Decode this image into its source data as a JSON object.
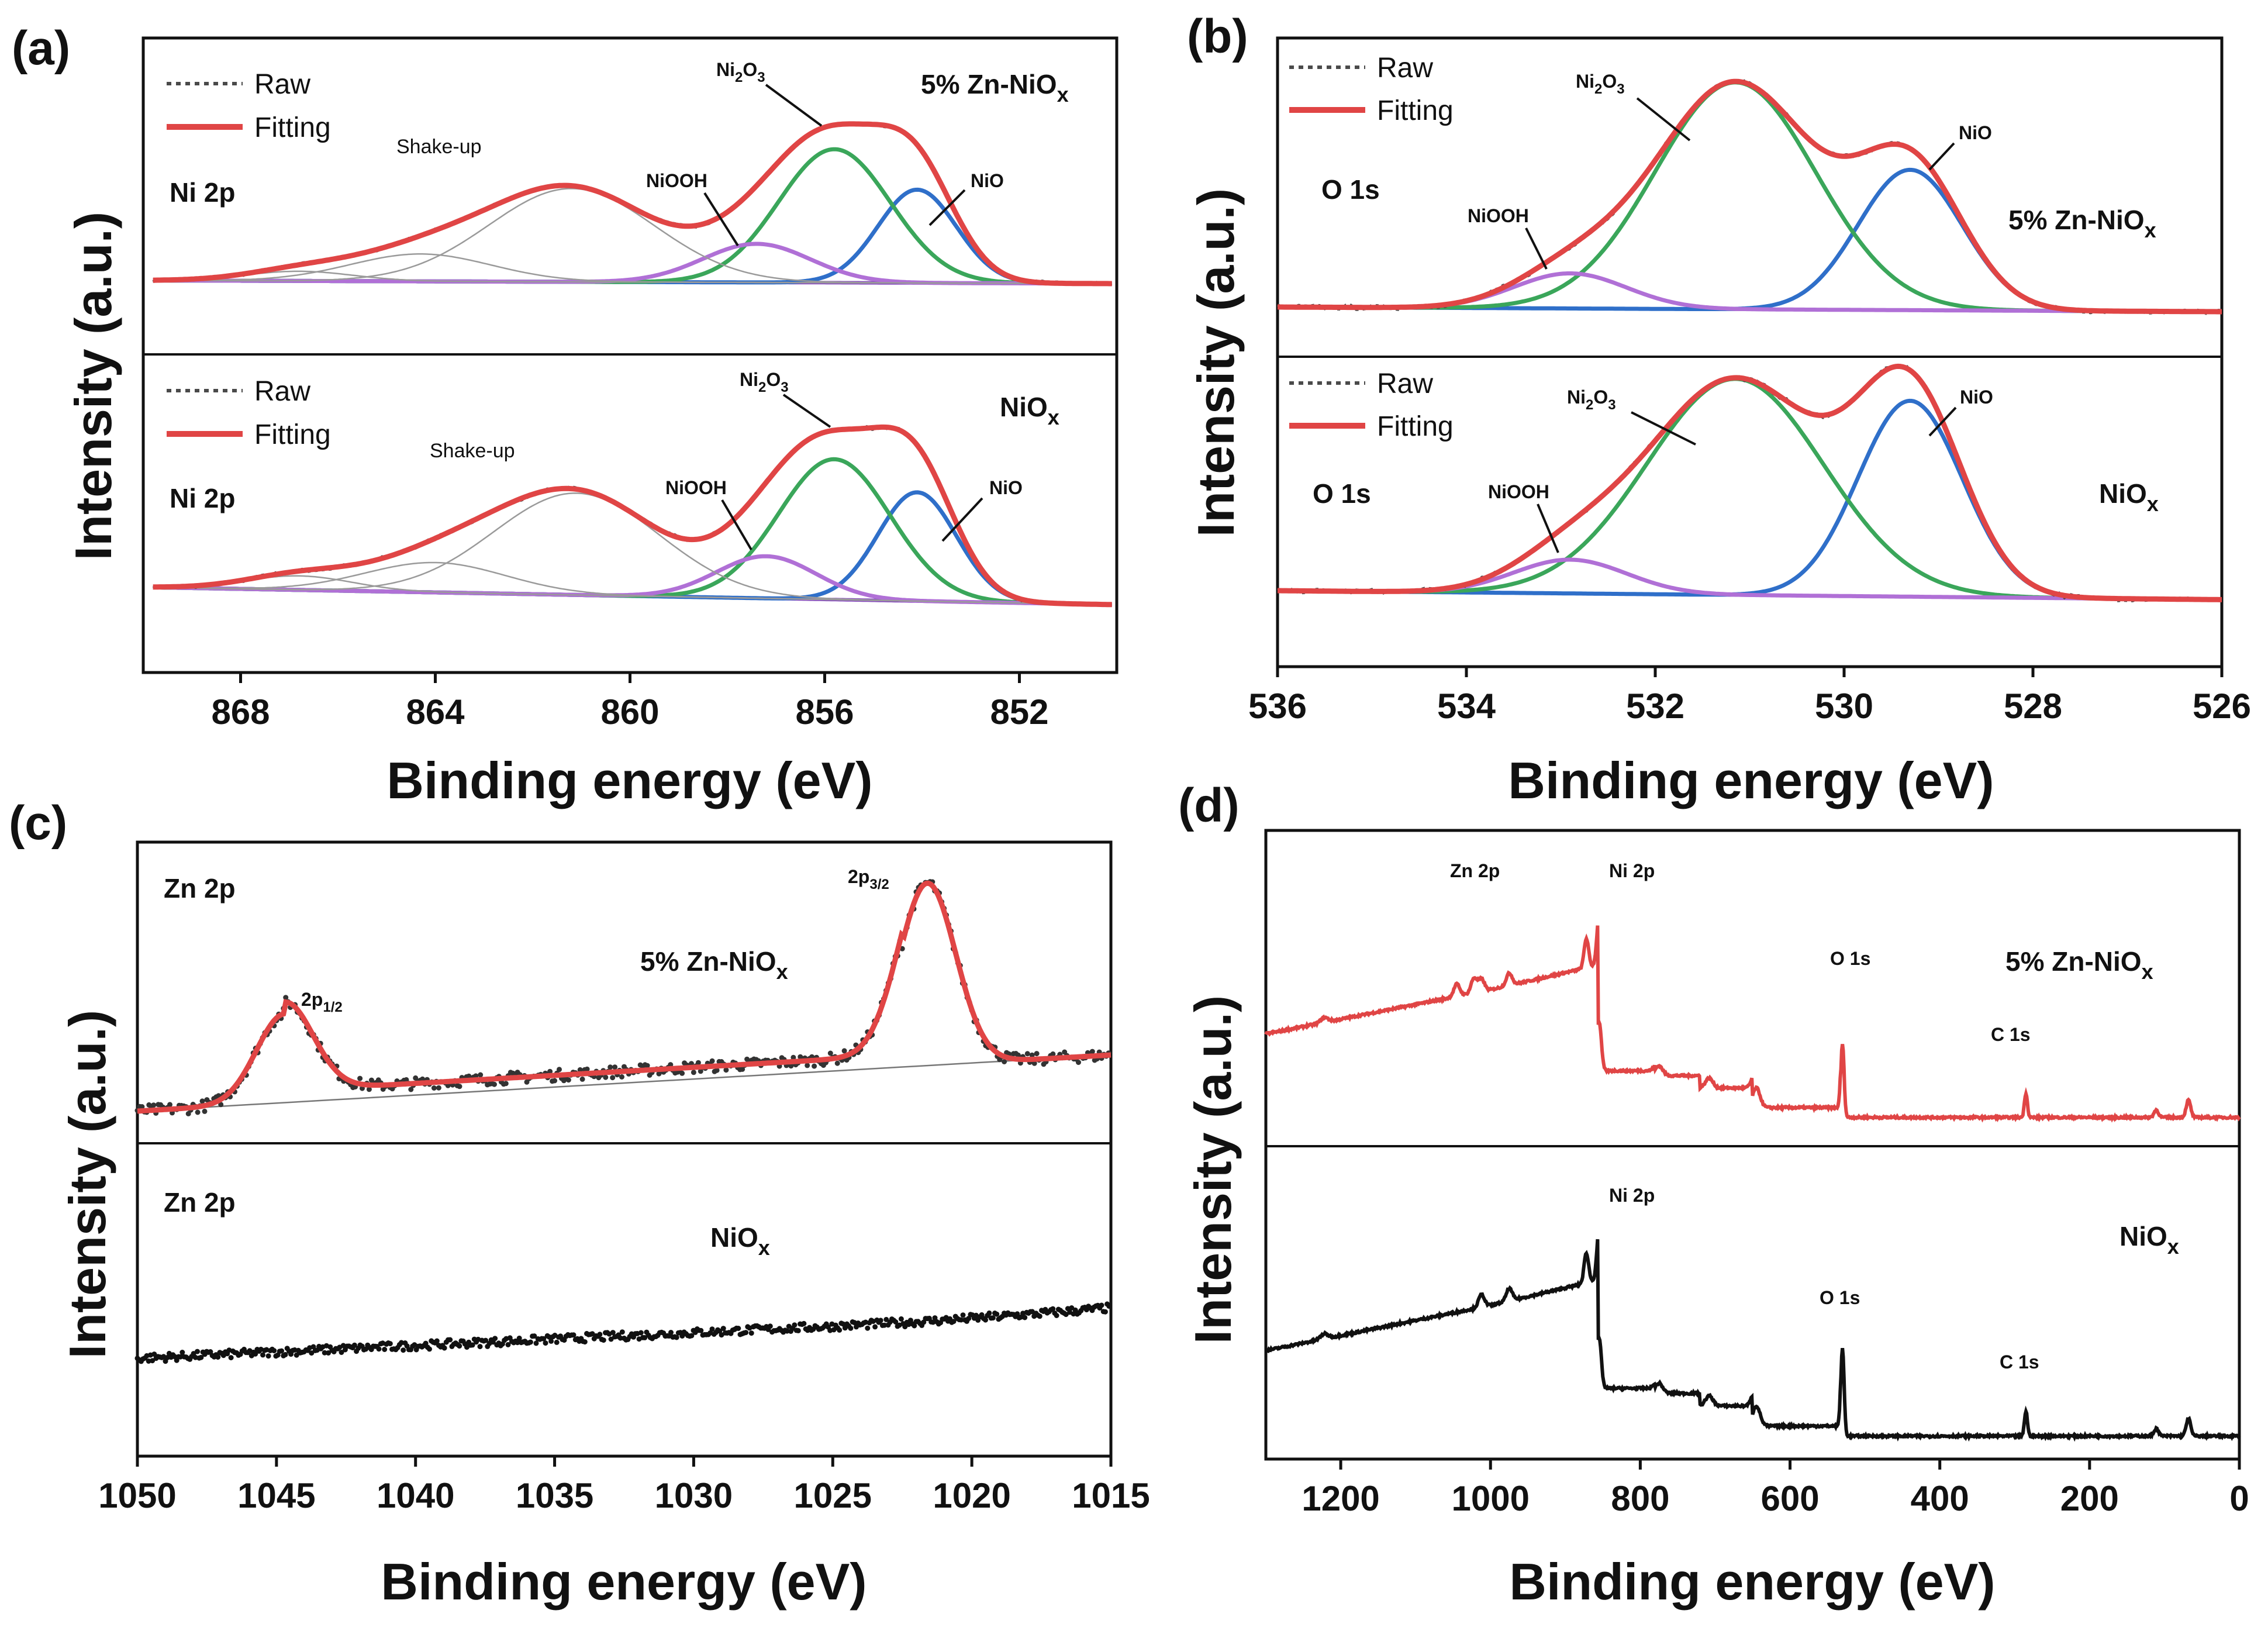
{
  "figure": {
    "panels": [
      {
        "id": "a",
        "label": "(a)"
      },
      {
        "id": "b",
        "label": "(b)"
      },
      {
        "id": "c",
        "label": "(c)"
      },
      {
        "id": "d",
        "label": "(d)"
      }
    ],
    "ylabel": "Intensity (a.u.)",
    "xlabel": "Binding energy (eV)"
  },
  "colors": {
    "raw": "#4a4a4a",
    "fitting": "#e04545",
    "nio": "#2f6fc9",
    "ni2o3": "#3aa65a",
    "niooh": "#b070d6",
    "background": "#8a4fc0",
    "shakeup": "#9a9a9a",
    "survey_zn": "#e04545",
    "survey_nio": "#111111"
  },
  "chart_data": [
    {
      "panel": "(a)",
      "type": "line",
      "xlabel": "Binding energy (eV)",
      "ylabel": "Intensity (a.u.)",
      "xlim": [
        870,
        850
      ],
      "xticks": [
        868,
        864,
        860,
        856,
        852
      ],
      "subplots": [
        {
          "region": "Ni 2p",
          "sample": "5% Zn-NiO",
          "sample_sub": "x",
          "legend": [
            "Raw",
            "Fitting"
          ],
          "peaks": [
            {
              "name": "NiO",
              "center": 854.1,
              "fwhm": 1.9,
              "amp": 0.58
            },
            {
              "name": "Ni2O3",
              "center": 855.8,
              "fwhm": 2.7,
              "amp": 0.83
            },
            {
              "name": "NiOOH",
              "center": 857.4,
              "fwhm": 2.6,
              "amp": 0.24
            },
            {
              "name": "Shake-up",
              "center": 861.2,
              "fwhm": 4.0,
              "amp": 0.58
            },
            {
              "name": "Shake-up",
              "center": 864.3,
              "fwhm": 3.4,
              "amp": 0.17
            },
            {
              "name": "Shake-up",
              "center": 866.8,
              "fwhm": 2.6,
              "amp": 0.06
            }
          ],
          "background": [
            0.02,
            0.0
          ],
          "annotations": [
            "Shake-up",
            "NiOOH",
            "Ni2O3",
            "NiO"
          ]
        },
        {
          "region": "Ni 2p",
          "sample": "NiO",
          "sample_sub": "x",
          "legend": [
            "Raw",
            "Fitting"
          ],
          "peaks": [
            {
              "name": "NiO",
              "center": 854.1,
              "fwhm": 1.9,
              "amp": 0.62
            },
            {
              "name": "Ni2O3",
              "center": 855.8,
              "fwhm": 2.7,
              "amp": 0.8
            },
            {
              "name": "NiOOH",
              "center": 857.2,
              "fwhm": 2.4,
              "amp": 0.24
            },
            {
              "name": "Shake-up",
              "center": 861.1,
              "fwhm": 4.0,
              "amp": 0.58
            },
            {
              "name": "Shake-up",
              "center": 864.0,
              "fwhm": 3.4,
              "amp": 0.17
            },
            {
              "name": "Shake-up",
              "center": 866.8,
              "fwhm": 2.6,
              "amp": 0.08
            }
          ],
          "background": [
            0.02,
            -0.08
          ],
          "annotations": [
            "Shake-up",
            "NiOOH",
            "Ni2O3",
            "NiO"
          ]
        }
      ]
    },
    {
      "panel": "(b)",
      "type": "line",
      "xlabel": "Binding energy (eV)",
      "ylabel": "Intensity (a.u.)",
      "xlim": [
        536,
        526
      ],
      "xticks": [
        536,
        534,
        532,
        530,
        528,
        526
      ],
      "subplots": [
        {
          "region": "O 1s",
          "sample": "5% Zn-NiO",
          "sample_sub": "x",
          "legend": [
            "Raw",
            "Fitting"
          ],
          "peaks": [
            {
              "name": "NiO",
              "center": 529.3,
              "fwhm": 1.3,
              "amp": 0.6
            },
            {
              "name": "Ni2O3",
              "center": 531.15,
              "fwhm": 2.0,
              "amp": 0.97
            },
            {
              "name": "NiOOH",
              "center": 532.9,
              "fwhm": 1.4,
              "amp": 0.15
            }
          ],
          "background": [
            0.0,
            -0.02
          ],
          "annotations": [
            "Ni2O3",
            "NiO",
            "NiOOH"
          ]
        },
        {
          "region": "O 1s",
          "sample": "NiO",
          "sample_sub": "x",
          "legend": [
            "Raw",
            "Fitting"
          ],
          "peaks": [
            {
              "name": "NiO",
              "center": 529.3,
              "fwhm": 1.3,
              "amp": 0.87
            },
            {
              "name": "Ni2O3",
              "center": 531.15,
              "fwhm": 2.2,
              "amp": 0.96
            },
            {
              "name": "NiOOH",
              "center": 532.9,
              "fwhm": 1.4,
              "amp": 0.15
            }
          ],
          "background": [
            0.0,
            -0.04
          ],
          "annotations": [
            "Ni2O3",
            "NiO",
            "NiOOH"
          ]
        }
      ]
    },
    {
      "panel": "(c)",
      "type": "scatter",
      "xlabel": "Binding energy (eV)",
      "ylabel": "Intensity (a.u.)",
      "xlim": [
        1050,
        1015
      ],
      "xticks": [
        1050,
        1045,
        1040,
        1035,
        1030,
        1025,
        1020,
        1015
      ],
      "subplots": [
        {
          "region": "Zn 2p",
          "sample": "5% Zn-NiO",
          "sample_sub": "x",
          "peaks": [
            {
              "name": "2p1/2",
              "center": 1044.7,
              "fwhm": 2.4,
              "amp": 0.38
            },
            {
              "name": "2p3/2",
              "center": 1021.6,
              "fwhm": 2.4,
              "amp": 0.78
            }
          ],
          "background": [
            0.0,
            0.24
          ],
          "annotations": [
            {
              "text": "2p",
              "sub": "1/2"
            },
            {
              "text": "2p",
              "sub": "3/2"
            }
          ]
        },
        {
          "region": "Zn 2p",
          "sample": "NiO",
          "sample_sub": "x",
          "trend": "monotonic increase toward lower binding energy"
        }
      ]
    },
    {
      "panel": "(d)",
      "type": "line",
      "xlabel": "Binding energy (eV)",
      "ylabel": "Intensity (a.u.)",
      "xlim": [
        1300,
        0
      ],
      "xticks": [
        1200,
        1000,
        800,
        600,
        400,
        200,
        0
      ],
      "series": [
        {
          "name": "5% Zn-NiO",
          "sample_sub": "x",
          "labels": [
            "Zn 2p",
            "Ni 2p",
            "O 1s",
            "C 1s"
          ]
        },
        {
          "name": "NiO",
          "sample_sub": "x",
          "labels": [
            "Ni 2p",
            "O 1s",
            "C 1s"
          ]
        }
      ],
      "peaks_eV": {
        "Zn 2p": 1022,
        "Ni 2p": 855,
        "O 1s": 530,
        "C 1s": 285
      }
    }
  ]
}
